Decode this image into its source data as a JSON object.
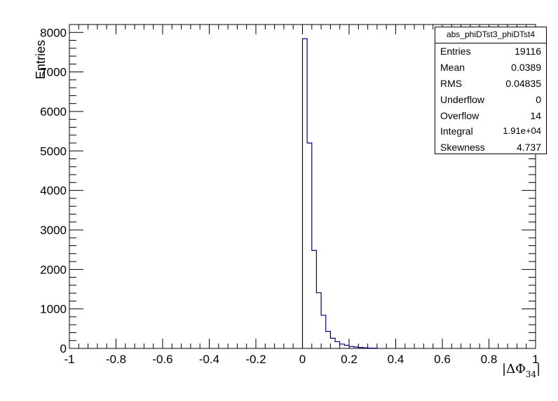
{
  "chart_data": {
    "type": "histogram",
    "title": "",
    "xlabel": "|ΔΦ",
    "xlabel_subscript": "34",
    "xlabel_suffix": "|",
    "ylabel": "Entries",
    "xlim": [
      -1,
      1
    ],
    "ylim": [
      0,
      8200
    ],
    "x_tick_labels": [
      "-1",
      "-0.8",
      "-0.6",
      "-0.4",
      "-0.2",
      "0",
      "0.2",
      "0.4",
      "0.6",
      "0.8",
      "1"
    ],
    "x_tick_values": [
      -1,
      -0.8,
      -0.6,
      -0.4,
      -0.2,
      0,
      0.2,
      0.4,
      0.6,
      0.8,
      1
    ],
    "y_tick_labels": [
      "0",
      "1000",
      "2000",
      "3000",
      "4000",
      "5000",
      "6000",
      "7000",
      "8000"
    ],
    "y_tick_values": [
      0,
      1000,
      2000,
      3000,
      4000,
      5000,
      6000,
      7000,
      8000
    ],
    "bin_width": 0.02,
    "bins_start": 0.0,
    "values": [
      7840,
      5200,
      2480,
      1410,
      840,
      430,
      260,
      170,
      110,
      80,
      50,
      35,
      25,
      15,
      10,
      6
    ],
    "line_color": "#00007f",
    "grid": false,
    "legend": "none"
  },
  "stats_box": {
    "title": "abs_phiDTst3_phiDTst4",
    "entries_label": "Entries",
    "entries_value": "19116",
    "mean_label": "Mean",
    "mean_value": "0.0389",
    "rms_label": "RMS",
    "rms_value": "0.04835",
    "underflow_label": "Underflow",
    "underflow_value": "0",
    "overflow_label": "Overflow",
    "overflow_value": "14",
    "integral_label": "Integral",
    "integral_value": "1.91e+04",
    "skewness_label": "Skewness",
    "skewness_value": "4.737"
  }
}
